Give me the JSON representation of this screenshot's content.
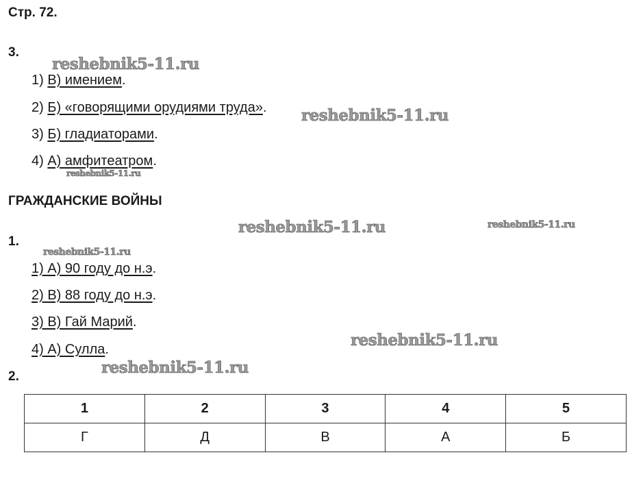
{
  "page_label": "Стр. 72.",
  "task3": {
    "number": "3.",
    "items": [
      {
        "num": "1) ",
        "answer": "В) имением",
        "end": "."
      },
      {
        "num": "2) ",
        "answer": "Б) «говорящими орудиями труда»",
        "end": "."
      },
      {
        "num": "3) ",
        "answer": "Б) гладиаторами",
        "end": "."
      },
      {
        "num": "4) ",
        "answer": "А) амфитеатром",
        "end": "."
      }
    ]
  },
  "section_title": "ГРАЖДАНСКИЕ ВОЙНЫ",
  "task1": {
    "number": "1.",
    "items": [
      {
        "answer": "1) А) 90 году до н.э",
        "end": "."
      },
      {
        "answer": "2) В) 88 году до н.э",
        "end": "."
      },
      {
        "answer": "3) В) Гай Марий",
        "end": "."
      },
      {
        "answer": "4) А) Сулла",
        "end": "."
      }
    ]
  },
  "task2": {
    "number": "2.",
    "table": {
      "header": [
        "1",
        "2",
        "3",
        "4",
        "5"
      ],
      "row": [
        "Г",
        "Д",
        "В",
        "А",
        "Б"
      ]
    }
  },
  "watermark": "reshebnik5-11.ru"
}
